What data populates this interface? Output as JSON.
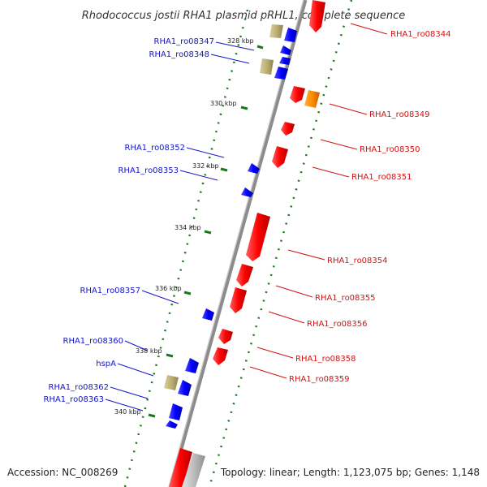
{
  "title": "Rhodococcus jostii RHA1 plasmid pRHL1, complete sequence",
  "accession": "Accession: NC_008269",
  "stats": "Topology: linear; Length: 1,123,075 bp; Genes: 1,148",
  "colors": {
    "forward_gene": "#ff0000",
    "reverse_gene": "#0000ff",
    "khaki_feature": "#bdb076",
    "orange_feature": "#ff8c00",
    "backbone": "#8c8c8c",
    "tick_green": "#1a7a1a",
    "label_blue": "#1515c8",
    "label_red": "#d11313"
  },
  "kbp_labels": [
    {
      "id": "328",
      "text": "328 kbp"
    },
    {
      "id": "330",
      "text": "330 kbp"
    },
    {
      "id": "332",
      "text": "332 kbp"
    },
    {
      "id": "334",
      "text": "334 kbp"
    },
    {
      "id": "336",
      "text": "336 kbp"
    },
    {
      "id": "338",
      "text": "338 kbp"
    },
    {
      "id": "340",
      "text": "340 kbp"
    }
  ],
  "labels_left": [
    {
      "id": "ro08347",
      "text": "RHA1_ro08347"
    },
    {
      "id": "ro08348",
      "text": "RHA1_ro08348"
    },
    {
      "id": "ro08352",
      "text": "RHA1_ro08352"
    },
    {
      "id": "ro08353",
      "text": "RHA1_ro08353"
    },
    {
      "id": "ro08357",
      "text": "RHA1_ro08357"
    },
    {
      "id": "ro08360",
      "text": "RHA1_ro08360"
    },
    {
      "id": "hspA",
      "text": "hspA"
    },
    {
      "id": "ro08362",
      "text": "RHA1_ro08362"
    },
    {
      "id": "ro08363",
      "text": "RHA1_ro08363"
    }
  ],
  "labels_right": [
    {
      "id": "ro08344",
      "text": "RHA1_ro08344"
    },
    {
      "id": "ro08349",
      "text": "RHA1_ro08349"
    },
    {
      "id": "ro08350",
      "text": "RHA1_ro08350"
    },
    {
      "id": "ro08351",
      "text": "RHA1_ro08351"
    },
    {
      "id": "ro08354",
      "text": "RHA1_ro08354"
    },
    {
      "id": "ro08355",
      "text": "RHA1_ro08355"
    },
    {
      "id": "ro08356",
      "text": "RHA1_ro08356"
    },
    {
      "id": "ro08358",
      "text": "RHA1_ro08358"
    },
    {
      "id": "ro08359",
      "text": "RHA1_ro08359"
    }
  ]
}
